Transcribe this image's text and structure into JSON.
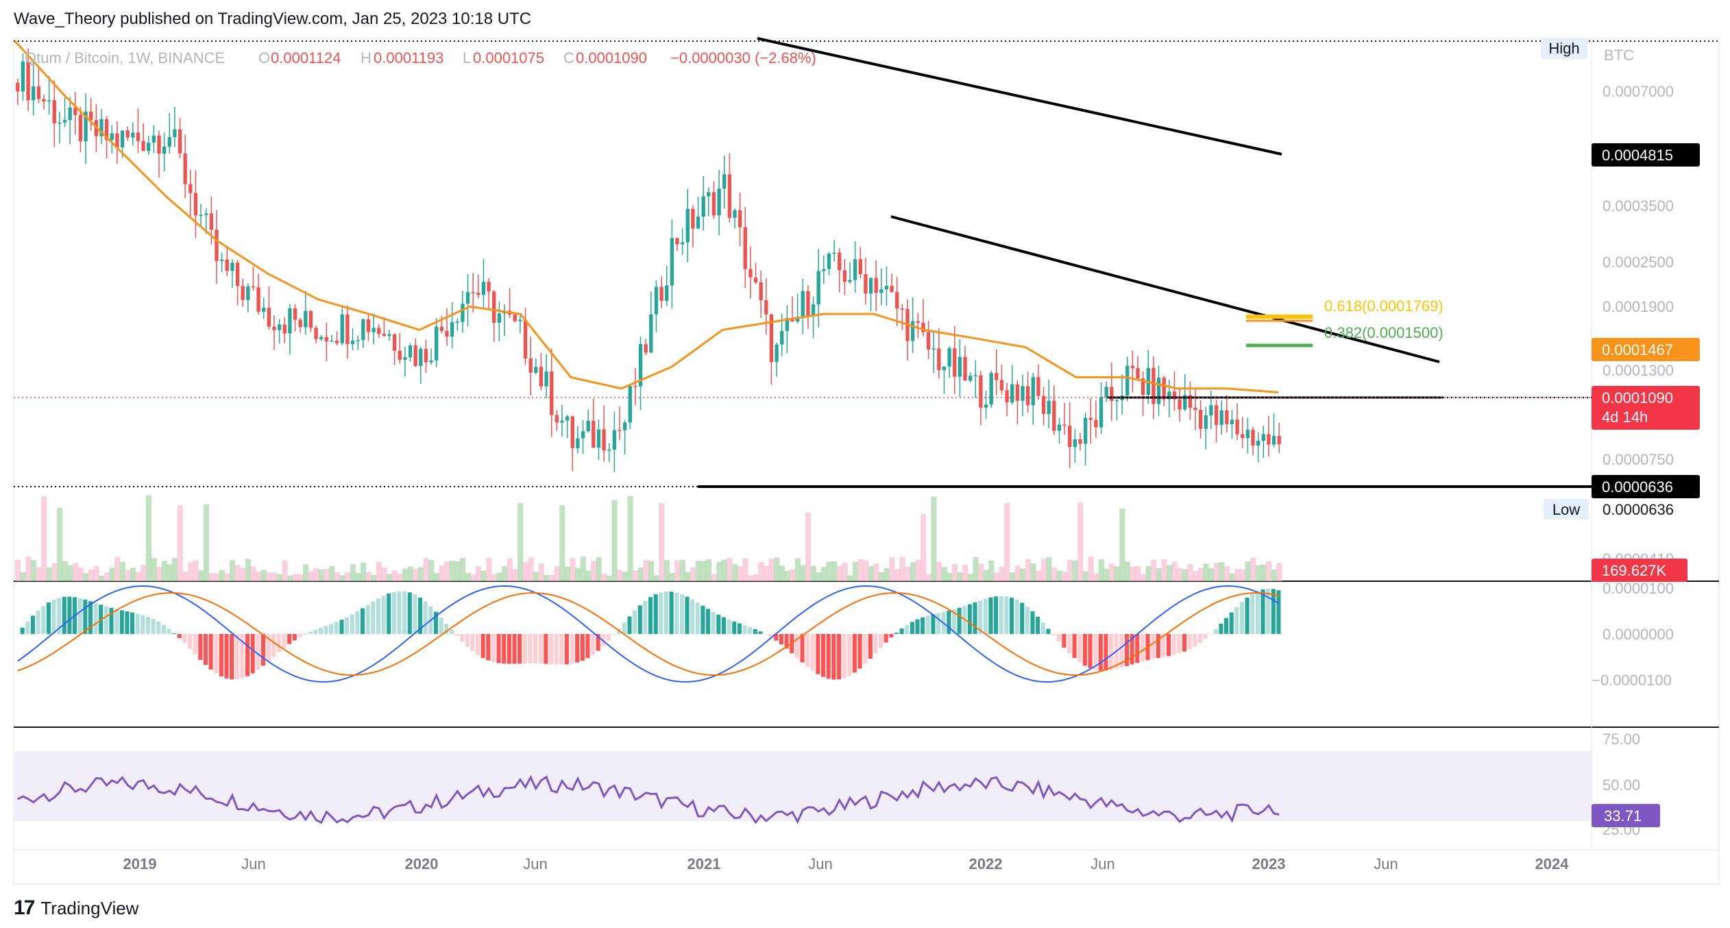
{
  "header": {
    "published": "Wave_Theory published on TradingView.com, Jan 25, 2023 10:18 UTC"
  },
  "legend": {
    "symbol": "Qtum / Bitcoin, 1W, BINANCE",
    "o_label": "O",
    "o_value": "0.0001124",
    "h_label": "H",
    "h_value": "0.0001193",
    "l_label": "L",
    "l_value": "0.0001075",
    "c_label": "C",
    "c_value": "0.0001090",
    "change": "−0.0000030 (−2.68%)"
  },
  "price_scale": {
    "currency": "BTC",
    "ticks": [
      "0.0007000",
      "0.0003500",
      "0.0002500",
      "0.0001900",
      "0.0001300",
      "0.0000750"
    ],
    "high_label": "High",
    "low_label": "Low",
    "low_value": "0.0000636",
    "tags": {
      "resistance": "0.0004815",
      "ema": "0.0001467",
      "last_price": "0.0001090",
      "countdown": "4d 14h",
      "low_line": "0.0000636"
    }
  },
  "fib_labels": {
    "f618": "0.618(0.0001769)",
    "f382": "0.382(0.0001500)"
  },
  "volume": {
    "value_tag": "169.627K",
    "axis_tick": "0.0000410"
  },
  "macd": {
    "ticks": [
      "0.0000100",
      "0.0000000",
      "−0.0000100"
    ]
  },
  "rsi": {
    "ticks": [
      "75.00",
      "50.00",
      "25.00"
    ],
    "value_tag": "33.71"
  },
  "time_axis": [
    "2019",
    "Jun",
    "2020",
    "Jun",
    "2021",
    "Jun",
    "2022",
    "Jun",
    "2023",
    "Jun",
    "2024"
  ],
  "footer": {
    "brand": "TradingView"
  },
  "colors": {
    "up": "#26a69a",
    "down": "#ef5350",
    "ema": "#f7931a",
    "macd": "#2962ff",
    "signal": "#ff6d00",
    "rsi": "#7e57c2",
    "fib618": "#ffc400",
    "fib382": "#4caf50",
    "last_tag": "#f23645",
    "ema_tag": "#f7931a"
  },
  "chart_data": {
    "type": "candlestick",
    "title": "Qtum / Bitcoin, 1W, BINANCE",
    "ylabel": "BTC",
    "y_scale": "log",
    "ylim": [
      6e-05,
      0.0011
    ],
    "x": [
      "2018-06",
      "2018-09",
      "2019-01",
      "2019-04",
      "2019-07",
      "2019-10",
      "2020-01",
      "2020-04",
      "2020-07",
      "2020-09",
      "2020-11",
      "2021-01",
      "2021-02",
      "2021-04",
      "2021-05",
      "2021-07",
      "2021-09",
      "2021-11",
      "2022-01",
      "2022-03",
      "2022-05",
      "2022-06",
      "2022-08",
      "2022-10",
      "2022-12",
      "2023-01"
    ],
    "close": [
      0.00092,
      0.00068,
      0.00062,
      0.00065,
      0.0003,
      0.00023,
      0.00021,
      0.00022,
      0.00018,
      0.00027,
      0.0002,
      0.00011,
      0.00012,
      0.00035,
      0.00048,
      0.00018,
      0.0003,
      0.00028,
      0.00019,
      0.00015,
      0.00015,
      0.00011,
      0.00016,
      0.00014,
      0.00012,
      0.000109
    ],
    "ema": {
      "name": "EMA",
      "values": [
        0.0011,
        0.0008,
        0.0006,
        0.00045,
        0.00035,
        0.00029,
        0.00025,
        0.00023,
        0.00021,
        0.00024,
        0.00023,
        0.00016,
        0.00015,
        0.00017,
        0.00021,
        0.00022,
        0.00023,
        0.00023,
        0.00021,
        0.0002,
        0.00019,
        0.00016,
        0.00016,
        0.00015,
        0.00015,
        0.0001467
      ]
    },
    "annotations": {
      "last_price": 0.000109,
      "all_time_low": 6.36e-05,
      "resistance_tag": 0.0004815,
      "ema_value": 0.0001467,
      "fib_0618": 0.0001769,
      "fib_0382": 0.00015,
      "upper_trendline": [
        [
          "2020-12",
          0.00095
        ],
        [
          "2023-01",
          0.0004815
        ]
      ],
      "lower_trendline": [
        [
          "2021-08",
          0.00033
        ],
        [
          "2023-07",
          0.000128
        ]
      ],
      "support_line": [
        [
          "2022-06",
          0.000109
        ],
        [
          "2023-07",
          0.000109
        ]
      ]
    },
    "rsi": {
      "name": "RSI",
      "ylim": [
        20,
        80
      ],
      "band": [
        30,
        70
      ],
      "last": 33.71
    },
    "volume_last": "169.627K"
  }
}
